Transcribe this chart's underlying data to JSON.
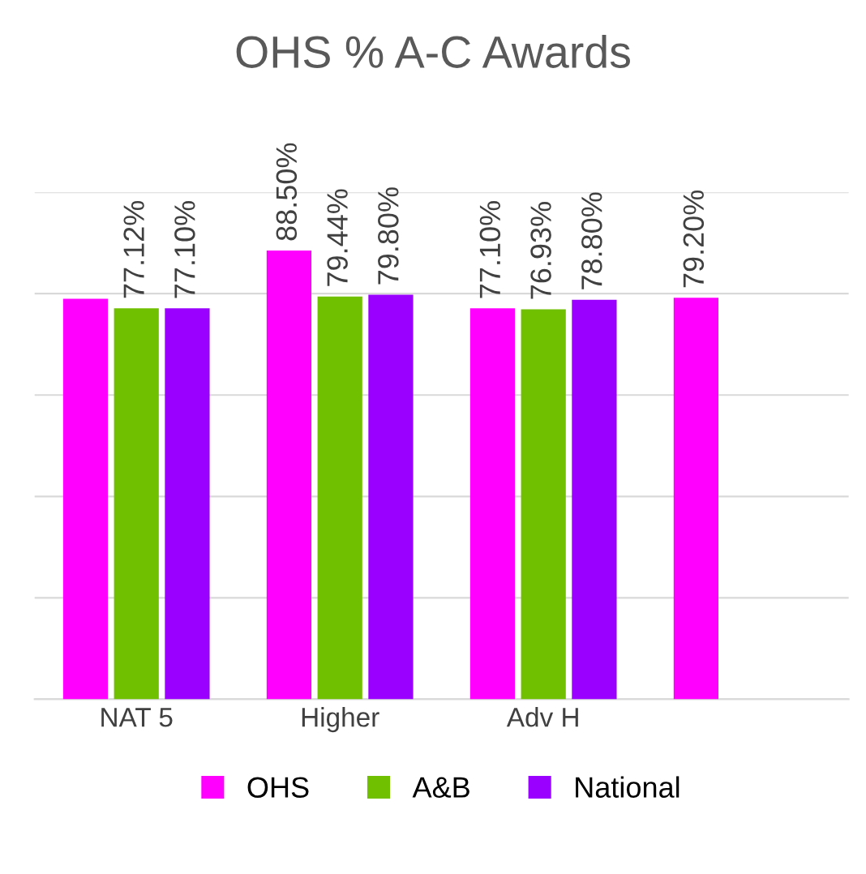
{
  "chart_data": {
    "type": "bar",
    "title": "OHS % A-C Awards",
    "categories": [
      "NAT 5",
      "Higher",
      "Adv H",
      null
    ],
    "series": [
      {
        "name": "OHS",
        "color": "#ff00ff",
        "values": [
          79.0,
          88.5,
          77.1,
          79.2
        ],
        "value_labels": [
          null,
          "88.50%",
          "77.10%",
          "79.20%"
        ]
      },
      {
        "name": "A&B",
        "color": "#70c000",
        "values": [
          77.12,
          79.44,
          76.93,
          null
        ],
        "value_labels": [
          "77.12%",
          "79.44%",
          "76.93%",
          null
        ]
      },
      {
        "name": "National",
        "color": "#9900ff",
        "values": [
          77.1,
          79.8,
          78.8,
          null
        ],
        "value_labels": [
          "77.10%",
          "79.80%",
          "78.80%",
          null
        ]
      }
    ],
    "ylim": [
      0,
      100
    ],
    "yticks": [
      {
        "value": 0,
        "label": null
      },
      {
        "value": 20,
        "label": null
      },
      {
        "value": 40,
        "label": null
      },
      {
        "value": 60,
        "label": null
      },
      {
        "value": 80,
        "label": null
      },
      {
        "value": 100,
        "label": null
      }
    ],
    "tick_labels": "x",
    "grid": "y",
    "legend": "bottom"
  }
}
